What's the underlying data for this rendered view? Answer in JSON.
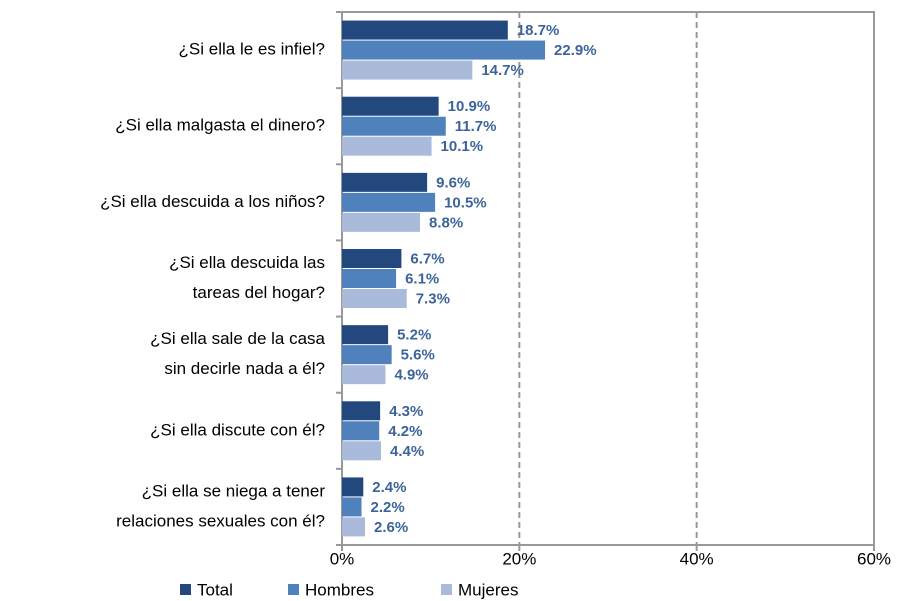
{
  "chart_data": {
    "type": "hbar",
    "categories": [
      [
        "¿Si ella le es infiel?"
      ],
      [
        "¿Si ella malgasta el dinero?"
      ],
      [
        "¿Si ella descuida a los niños?"
      ],
      [
        "¿Si ella descuida las",
        "tareas del hogar?"
      ],
      [
        "¿Si ella sale de la casa",
        "sin decirle nada a él?"
      ],
      [
        "¿Si ella discute con él?"
      ],
      [
        "¿Si ella se niega a tener",
        "relaciones sexuales con él?"
      ]
    ],
    "series": [
      {
        "name": "Total",
        "color": "#23487d",
        "values": [
          18.7,
          10.9,
          9.6,
          6.7,
          5.2,
          4.3,
          2.4
        ],
        "value_labels": [
          "18.7%",
          "10.9%",
          "9.6%",
          "6.7%",
          "5.2%",
          "4.3%",
          "2.4%"
        ]
      },
      {
        "name": "Hombres",
        "color": "#4f81bd",
        "values": [
          22.9,
          11.7,
          10.5,
          6.1,
          5.6,
          4.2,
          2.2
        ],
        "value_labels": [
          "22.9%",
          "11.7%",
          "10.5%",
          "6.1%",
          "5.6%",
          "4.2%",
          "2.2%"
        ]
      },
      {
        "name": "Mujeres",
        "color": "#a9badb",
        "values": [
          14.7,
          10.1,
          8.8,
          7.3,
          4.9,
          4.4,
          2.6
        ],
        "value_labels": [
          "14.7%",
          "10.1%",
          "8.8%",
          "7.3%",
          "4.9%",
          "4.4%",
          "2.6%"
        ]
      }
    ],
    "xlim": [
      0,
      60
    ],
    "xticks": [
      {
        "value": 0,
        "label": "0%"
      },
      {
        "value": 20,
        "label": "20%"
      },
      {
        "value": 40,
        "label": "40%"
      },
      {
        "value": 60,
        "label": "60%"
      }
    ],
    "grid": true,
    "legend": "bottom"
  }
}
